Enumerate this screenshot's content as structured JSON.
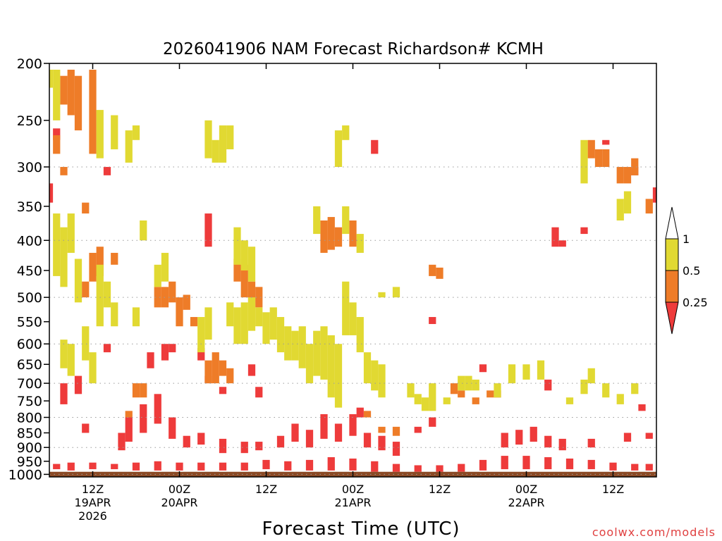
{
  "chart_data": {
    "type": "heatmap",
    "title": "2026041906 NAM Forecast Richardson# KCMH",
    "xlabel": "Forecast Time (UTC)",
    "ylabel": "",
    "credit": "coolwx.com/models",
    "y_axis": {
      "scale": "log-pressure",
      "units": "hPa",
      "range": [
        1010,
        200
      ],
      "ticks": [
        "200",
        "250",
        "300",
        "350",
        "400",
        "450",
        "500",
        "550",
        "600",
        "650",
        "700",
        "750",
        "800",
        "850",
        "900",
        "950",
        "1000"
      ],
      "dotted_gridlines": [
        "300",
        "400",
        "500",
        "600",
        "700",
        "800",
        "900",
        "1000"
      ]
    },
    "x_axis": {
      "units": "forecast hour",
      "range": [
        0,
        84
      ],
      "ticks": [
        {
          "hour": 6,
          "lines": [
            "12Z",
            "19APR",
            "2026"
          ]
        },
        {
          "hour": 18,
          "lines": [
            "00Z",
            "20APR"
          ]
        },
        {
          "hour": 30,
          "lines": [
            "12Z"
          ]
        },
        {
          "hour": 42,
          "lines": [
            "00Z",
            "21APR"
          ]
        },
        {
          "hour": 54,
          "lines": [
            "12Z"
          ]
        },
        {
          "hour": 66,
          "lines": [
            "00Z",
            "22APR"
          ]
        },
        {
          "hour": 78,
          "lines": [
            "12Z"
          ]
        }
      ]
    },
    "legend": {
      "placement": "right",
      "labels": [
        "1",
        "0.5",
        "0.25"
      ],
      "bins": [
        {
          "range": "0 - 0.25",
          "color": "#ee3b3b"
        },
        {
          "range": "0.25 - 0.5",
          "color": "#ee7c28"
        },
        {
          "range": "0.5 - 1",
          "color": "#e1d932"
        }
      ]
    },
    "surface": {
      "pressure_from": 990,
      "color": "#8b4a25"
    },
    "series": [
      {
        "name": "Ri < 0.25",
        "color": "#ee3b3b",
        "cells": [
          [
            1,
            980,
            960
          ],
          [
            3,
            985,
            955
          ],
          [
            6,
            980,
            955
          ],
          [
            9,
            980,
            960
          ],
          [
            12,
            985,
            955
          ],
          [
            15,
            985,
            950
          ],
          [
            18,
            985,
            955
          ],
          [
            21,
            985,
            955
          ],
          [
            24,
            985,
            955
          ],
          [
            27,
            985,
            955
          ],
          [
            30,
            980,
            945
          ],
          [
            33,
            985,
            950
          ],
          [
            36,
            985,
            945
          ],
          [
            39,
            985,
            935
          ],
          [
            42,
            985,
            940
          ],
          [
            45,
            990,
            950
          ],
          [
            48,
            990,
            960
          ],
          [
            51,
            990,
            965
          ],
          [
            54,
            990,
            965
          ],
          [
            57,
            990,
            960
          ],
          [
            60,
            985,
            945
          ],
          [
            63,
            980,
            930
          ],
          [
            66,
            980,
            930
          ],
          [
            69,
            980,
            935
          ],
          [
            72,
            980,
            940
          ],
          [
            75,
            980,
            945
          ],
          [
            78,
            985,
            955
          ],
          [
            81,
            985,
            960
          ],
          [
            83,
            985,
            960
          ],
          [
            10,
            910,
            850
          ],
          [
            11,
            880,
            800
          ],
          [
            13,
            850,
            760
          ],
          [
            15,
            820,
            730
          ],
          [
            17,
            870,
            800
          ],
          [
            19,
            900,
            860
          ],
          [
            21,
            890,
            850
          ],
          [
            24,
            920,
            870
          ],
          [
            27,
            920,
            880
          ],
          [
            29,
            910,
            880
          ],
          [
            32,
            900,
            860
          ],
          [
            34,
            880,
            820
          ],
          [
            36,
            900,
            840
          ],
          [
            38,
            870,
            790
          ],
          [
            40,
            880,
            820
          ],
          [
            42,
            860,
            790
          ],
          [
            44,
            900,
            850
          ],
          [
            46,
            910,
            860
          ],
          [
            48,
            930,
            880
          ],
          [
            51,
            850,
            830
          ],
          [
            53,
            830,
            800
          ],
          [
            63,
            900,
            850
          ],
          [
            65,
            890,
            840
          ],
          [
            67,
            880,
            830
          ],
          [
            69,
            900,
            860
          ],
          [
            71,
            910,
            870
          ],
          [
            75,
            900,
            870
          ],
          [
            80,
            880,
            850
          ],
          [
            2,
            760,
            700
          ],
          [
            4,
            730,
            680
          ],
          [
            5,
            850,
            820
          ],
          [
            8,
            620,
            600
          ],
          [
            14,
            660,
            620
          ],
          [
            16,
            640,
            600
          ],
          [
            17,
            620,
            600
          ],
          [
            21,
            640,
            610
          ],
          [
            22,
            700,
            680
          ],
          [
            24,
            730,
            710
          ],
          [
            28,
            680,
            650
          ],
          [
            29,
            740,
            710
          ],
          [
            43,
            800,
            770
          ],
          [
            0,
            320,
            345
          ],
          [
            1,
            258,
            270
          ],
          [
            8,
            300,
            310
          ],
          [
            22,
            360,
            410
          ],
          [
            45,
            270,
            285
          ],
          [
            53,
            540,
            555
          ],
          [
            60,
            650,
            670
          ],
          [
            62,
            720,
            740
          ],
          [
            69,
            690,
            720
          ],
          [
            70,
            380,
            410
          ],
          [
            71,
            400,
            410
          ],
          [
            74,
            380,
            390
          ],
          [
            77,
            270,
            275
          ],
          [
            81,
            300,
            310
          ],
          [
            84,
            325,
            345
          ],
          [
            82,
            760,
            780
          ],
          [
            83,
            850,
            870
          ]
        ]
      },
      {
        "name": "0.25 < Ri < 0.5",
        "color": "#ee7c28",
        "cells": [
          [
            2,
            210,
            235
          ],
          [
            3,
            205,
            245
          ],
          [
            4,
            210,
            260
          ],
          [
            6,
            205,
            285
          ],
          [
            1,
            265,
            285
          ],
          [
            2,
            300,
            310
          ],
          [
            5,
            345,
            360
          ],
          [
            5,
            470,
            500
          ],
          [
            6,
            420,
            470
          ],
          [
            7,
            410,
            460
          ],
          [
            9,
            420,
            440
          ],
          [
            15,
            480,
            520
          ],
          [
            16,
            480,
            520
          ],
          [
            17,
            470,
            510
          ],
          [
            18,
            500,
            560
          ],
          [
            19,
            495,
            525
          ],
          [
            20,
            540,
            560
          ],
          [
            22,
            640,
            700
          ],
          [
            23,
            620,
            700
          ],
          [
            24,
            640,
            680
          ],
          [
            25,
            660,
            700
          ],
          [
            26,
            430,
            470
          ],
          [
            27,
            440,
            500
          ],
          [
            28,
            470,
            510
          ],
          [
            29,
            480,
            520
          ],
          [
            38,
            370,
            420
          ],
          [
            39,
            365,
            415
          ],
          [
            40,
            380,
            410
          ],
          [
            42,
            370,
            410
          ],
          [
            53,
            440,
            460
          ],
          [
            54,
            445,
            465
          ],
          [
            56,
            700,
            730
          ],
          [
            57,
            720,
            740
          ],
          [
            59,
            740,
            760
          ],
          [
            61,
            720,
            740
          ],
          [
            75,
            270,
            290
          ],
          [
            76,
            280,
            300
          ],
          [
            77,
            280,
            300
          ],
          [
            79,
            300,
            320
          ],
          [
            80,
            300,
            320
          ],
          [
            81,
            290,
            310
          ],
          [
            83,
            340,
            360
          ],
          [
            44,
            780,
            800
          ],
          [
            46,
            830,
            850
          ],
          [
            48,
            830,
            860
          ],
          [
            12,
            700,
            740
          ],
          [
            13,
            700,
            740
          ],
          [
            11,
            780,
            800
          ]
        ]
      },
      {
        "name": "0.5 < Ri < 1",
        "color": "#e1d932",
        "cells": [
          [
            0,
            205,
            220
          ],
          [
            1,
            205,
            250
          ],
          [
            7,
            240,
            290
          ],
          [
            9,
            245,
            280
          ],
          [
            11,
            260,
            295
          ],
          [
            12,
            255,
            270
          ],
          [
            22,
            250,
            290
          ],
          [
            23,
            270,
            295
          ],
          [
            24,
            255,
            295
          ],
          [
            25,
            255,
            280
          ],
          [
            40,
            260,
            300
          ],
          [
            41,
            255,
            270
          ],
          [
            1,
            360,
            460
          ],
          [
            2,
            380,
            480
          ],
          [
            3,
            360,
            420
          ],
          [
            4,
            430,
            510
          ],
          [
            7,
            440,
            560
          ],
          [
            8,
            470,
            520
          ],
          [
            9,
            510,
            560
          ],
          [
            2,
            590,
            660
          ],
          [
            3,
            600,
            680
          ],
          [
            5,
            560,
            640
          ],
          [
            6,
            620,
            700
          ],
          [
            13,
            370,
            400
          ],
          [
            15,
            440,
            480
          ],
          [
            16,
            420,
            470
          ],
          [
            21,
            540,
            620
          ],
          [
            22,
            520,
            590
          ],
          [
            25,
            510,
            560
          ],
          [
            26,
            520,
            600
          ],
          [
            27,
            510,
            600
          ],
          [
            28,
            500,
            570
          ],
          [
            29,
            520,
            560
          ],
          [
            30,
            530,
            600
          ],
          [
            31,
            520,
            590
          ],
          [
            32,
            540,
            620
          ],
          [
            33,
            560,
            640
          ],
          [
            34,
            570,
            640
          ],
          [
            35,
            560,
            660
          ],
          [
            36,
            600,
            700
          ],
          [
            37,
            570,
            680
          ],
          [
            38,
            560,
            690
          ],
          [
            39,
            580,
            740
          ],
          [
            40,
            600,
            770
          ],
          [
            41,
            470,
            580
          ],
          [
            42,
            510,
            580
          ],
          [
            43,
            540,
            620
          ],
          [
            44,
            620,
            700
          ],
          [
            45,
            640,
            720
          ],
          [
            46,
            650,
            740
          ],
          [
            26,
            380,
            440
          ],
          [
            27,
            400,
            450
          ],
          [
            28,
            410,
            470
          ],
          [
            37,
            350,
            390
          ],
          [
            41,
            350,
            390
          ],
          [
            43,
            390,
            420
          ],
          [
            50,
            700,
            740
          ],
          [
            51,
            730,
            760
          ],
          [
            52,
            740,
            780
          ],
          [
            53,
            700,
            780
          ],
          [
            55,
            740,
            760
          ],
          [
            57,
            680,
            720
          ],
          [
            58,
            680,
            720
          ],
          [
            59,
            690,
            720
          ],
          [
            62,
            700,
            740
          ],
          [
            64,
            650,
            700
          ],
          [
            66,
            650,
            690
          ],
          [
            68,
            640,
            690
          ],
          [
            72,
            740,
            760
          ],
          [
            74,
            690,
            730
          ],
          [
            75,
            660,
            700
          ],
          [
            77,
            700,
            740
          ],
          [
            79,
            730,
            760
          ],
          [
            81,
            700,
            730
          ],
          [
            74,
            270,
            320
          ],
          [
            79,
            340,
            370
          ],
          [
            80,
            330,
            360
          ],
          [
            46,
            490,
            500
          ],
          [
            48,
            480,
            500
          ],
          [
            12,
            520,
            560
          ]
        ]
      }
    ]
  }
}
